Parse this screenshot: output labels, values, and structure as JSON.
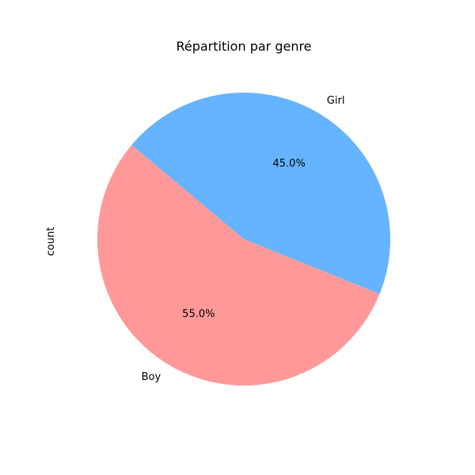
{
  "chart_data": {
    "type": "pie",
    "title": "Répartition par genre",
    "ylabel": "count",
    "slices": [
      {
        "label": "Boy",
        "value": 55.0,
        "pct_label": "55.0%",
        "color": "#ff9999"
      },
      {
        "label": "Girl",
        "value": 45.0,
        "pct_label": "45.0%",
        "color": "#66b3ff"
      }
    ],
    "start_angle_deg": 140,
    "legend": "none"
  }
}
